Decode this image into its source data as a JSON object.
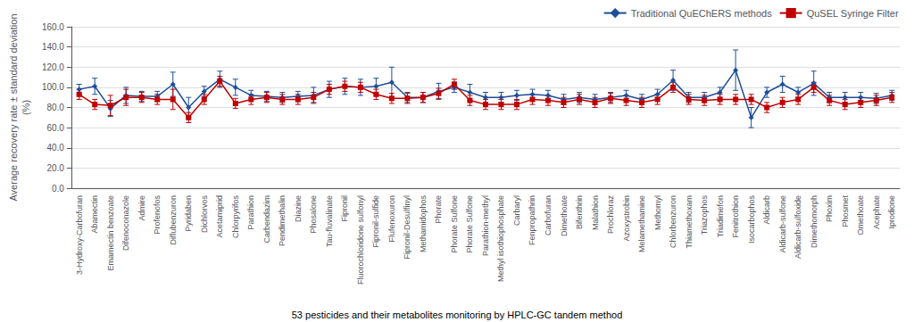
{
  "chart_data": {
    "type": "line",
    "categories": [
      "3-Hydroxy-Carbofuran",
      "Abamectin",
      "Emamectin benzoate",
      "Difenoconazole",
      "Admire",
      "Profenofos",
      "Diflubenzuron",
      "Pyridaben",
      "Dichlorvos",
      "Acetamiprid",
      "Chlorpyrifos",
      "Parathion",
      "Carbendazim",
      "Pendimethalin",
      "Diazine",
      "Phosalone",
      "Tau-fluvalinate",
      "Fipronil",
      "Fluorochloridone sulfonyl",
      "Fipronil-sulfide",
      "Flufenoxuron",
      "Fipronil-Desulfinyl",
      "Methamidophos",
      "Phorate",
      "Phorate Sulfone",
      "Phorate Sulfone",
      "Parathion-methyl",
      "Methyl isothiophosphate",
      "Carbaryl",
      "Fenpropathrin",
      "Carbofuran",
      "Dimethoate",
      "Bifenthrin",
      "Malathion",
      "Prochloraz",
      "Azoxystrobin",
      "Melamethamine",
      "Methomyl",
      "Chlorbenzuron",
      "Thiamethoxam",
      "Triazophos",
      "Triadimefon",
      "Fenitrothion",
      "Isocarbophos",
      "Aldicarb",
      "Aldicarb-sulfone",
      "Aldicarb-sulfoxide",
      "Dimethomorph",
      "Phoxim",
      "Phosmet",
      "Omethoate",
      "Acephate",
      "Iprodione"
    ],
    "series": [
      {
        "name": "Traditional QuEChERS methods",
        "color": "#1F4E99",
        "marker": "diamond",
        "values": [
          98,
          101,
          79,
          92,
          91,
          91,
          103,
          80,
          96,
          108,
          100,
          92,
          91,
          90,
          91,
          92,
          98,
          101,
          100,
          101,
          105,
          90,
          90,
          96,
          100,
          95,
          90,
          90,
          92,
          93,
          92,
          88,
          90,
          88,
          90,
          92,
          88,
          93,
          107,
          90,
          90,
          95,
          117,
          70,
          95,
          103,
          95,
          104,
          90,
          90,
          90,
          89,
          92
        ],
        "errors": [
          5,
          8,
          8,
          8,
          5,
          5,
          12,
          10,
          5,
          8,
          8,
          5,
          5,
          5,
          5,
          8,
          8,
          8,
          8,
          8,
          15,
          5,
          5,
          8,
          5,
          8,
          5,
          5,
          5,
          5,
          5,
          5,
          5,
          5,
          5,
          5,
          5,
          5,
          10,
          5,
          5,
          5,
          20,
          10,
          5,
          8,
          5,
          12,
          5,
          5,
          5,
          5,
          5
        ]
      },
      {
        "name": "QuSEL Syringe Filter",
        "color": "#C00000",
        "marker": "square",
        "values": [
          93,
          83,
          82,
          90,
          90,
          88,
          88,
          70,
          88,
          106,
          84,
          88,
          90,
          88,
          88,
          90,
          98,
          101,
          100,
          93,
          89,
          89,
          90,
          94,
          103,
          87,
          83,
          83,
          83,
          88,
          87,
          85,
          88,
          85,
          89,
          87,
          85,
          88,
          100,
          88,
          87,
          88,
          88,
          88,
          80,
          85,
          88,
          100,
          87,
          83,
          85,
          87,
          90
        ],
        "errors": [
          5,
          5,
          10,
          8,
          5,
          5,
          10,
          5,
          5,
          5,
          5,
          5,
          5,
          5,
          5,
          5,
          5,
          5,
          5,
          5,
          5,
          5,
          5,
          5,
          5,
          5,
          5,
          5,
          5,
          5,
          5,
          5,
          5,
          5,
          5,
          5,
          5,
          5,
          5,
          5,
          5,
          5,
          5,
          5,
          5,
          5,
          5,
          5,
          5,
          5,
          5,
          5,
          5
        ]
      }
    ],
    "ylabel": "Average recovery rate ± standard deviation\n(%)",
    "footnote": "53 pesticides and their metabolites monitoring by HPLC-GC tandem method",
    "ylim": [
      0,
      160
    ],
    "yticks": [
      {
        "value": 0,
        "label": "0.0"
      },
      {
        "value": 20,
        "label": "20.0"
      },
      {
        "value": 40,
        "label": "40.0"
      },
      {
        "value": 60,
        "label": "60.0"
      },
      {
        "value": 80,
        "label": "80.0"
      },
      {
        "value": 100,
        "label": "100.0"
      },
      {
        "value": 120,
        "label": "120.0"
      },
      {
        "value": 140,
        "label": "140.0"
      },
      {
        "value": 160,
        "label": "160.0"
      }
    ],
    "grid": true,
    "legend": "upper right"
  }
}
